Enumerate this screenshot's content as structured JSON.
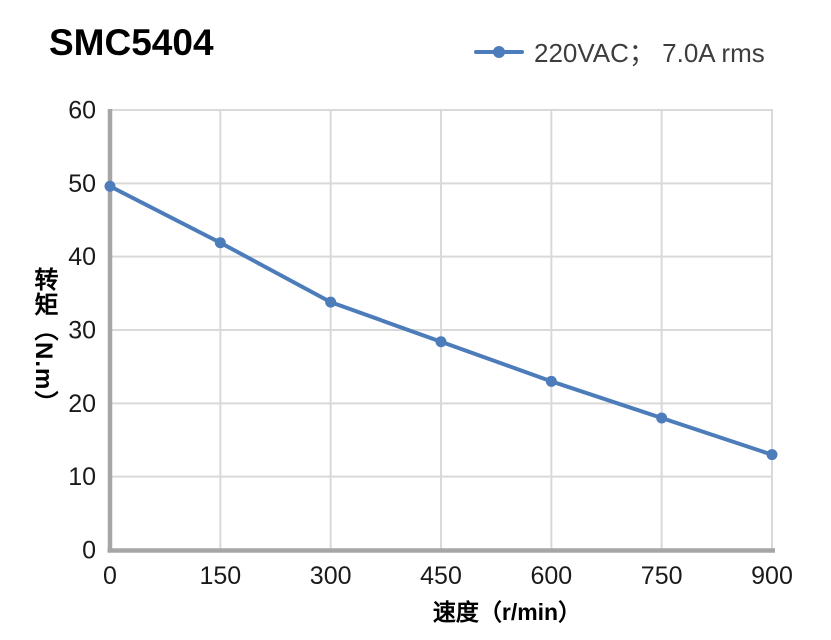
{
  "header": {
    "title": "SMC5404",
    "legend_label": "220VAC； 7.0A rms"
  },
  "chart_data": {
    "type": "line",
    "title": "SMC5404",
    "series": [
      {
        "name": "220VAC； 7.0A rms",
        "x": [
          0,
          150,
          300,
          450,
          600,
          750,
          900
        ],
        "values": [
          49.6,
          41.9,
          33.8,
          28.4,
          23.0,
          18.0,
          13.0
        ],
        "marker": "circle"
      }
    ],
    "xlabel": "速度（r/min）",
    "ylabel": "转矩（N.m）",
    "xlim": [
      0,
      900
    ],
    "ylim": [
      0,
      60
    ],
    "x_ticks": [
      0,
      150,
      300,
      450,
      600,
      750,
      900
    ],
    "y_ticks": [
      0,
      10,
      20,
      30,
      40,
      50,
      60
    ],
    "grid": true,
    "legend_position": "top-right",
    "colors": {
      "line": "#4d7cbb",
      "grid": "#d9d9d9",
      "axis": "#a6a6a6",
      "tick_text": "#1a1a1a",
      "legend_text": "#3d3d3d",
      "title_text": "#000000"
    }
  }
}
